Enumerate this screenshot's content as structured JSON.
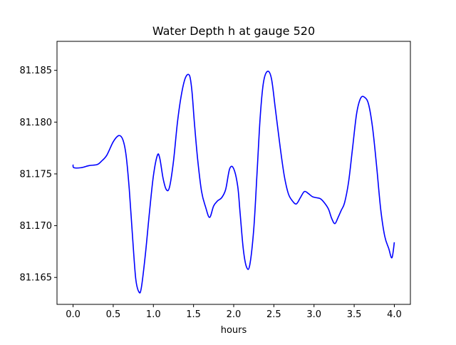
{
  "chart_data": {
    "type": "line",
    "title": "Water Depth h at gauge 520",
    "xlabel": "hours",
    "ylabel": "",
    "xlim": [
      -0.2,
      4.2
    ],
    "ylim": [
      81.1624,
      81.1878
    ],
    "xticks": [
      0.0,
      0.5,
      1.0,
      1.5,
      2.0,
      2.5,
      3.0,
      3.5,
      4.0
    ],
    "xtick_labels": [
      "0.0",
      "0.5",
      "1.0",
      "1.5",
      "2.0",
      "2.5",
      "3.0",
      "3.5",
      "4.0"
    ],
    "yticks": [
      81.165,
      81.17,
      81.175,
      81.18,
      81.185
    ],
    "ytick_labels": [
      "81.165",
      "81.170",
      "81.175",
      "81.180",
      "81.185"
    ],
    "grid": false,
    "series": [
      {
        "color": "#0000ff",
        "x": [
          0.0,
          0.01,
          0.1,
          0.2,
          0.3,
          0.35,
          0.42,
          0.5,
          0.57,
          0.62,
          0.66,
          0.7,
          0.74,
          0.78,
          0.82,
          0.85,
          0.9,
          0.95,
          1.0,
          1.05,
          1.08,
          1.12,
          1.16,
          1.2,
          1.25,
          1.3,
          1.35,
          1.4,
          1.45,
          1.48,
          1.51,
          1.55,
          1.6,
          1.65,
          1.7,
          1.75,
          1.8,
          1.85,
          1.9,
          1.95,
          2.0,
          2.05,
          2.08,
          2.12,
          2.16,
          2.2,
          2.25,
          2.29,
          2.33,
          2.37,
          2.42,
          2.47,
          2.52,
          2.58,
          2.63,
          2.68,
          2.73,
          2.78,
          2.83,
          2.88,
          2.93,
          2.98,
          3.03,
          3.08,
          3.13,
          3.18,
          3.22,
          3.26,
          3.3,
          3.34,
          3.38,
          3.43,
          3.48,
          3.53,
          3.58,
          3.63,
          3.68,
          3.73,
          3.78,
          3.83,
          3.88,
          3.93,
          3.97,
          4.0
        ],
        "y": [
          81.1759,
          81.1756,
          81.1756,
          81.1758,
          81.1759,
          81.1762,
          81.1768,
          81.1781,
          81.1787,
          81.1783,
          81.1768,
          81.1735,
          81.169,
          81.1649,
          81.1636,
          81.164,
          81.1672,
          81.1712,
          81.1748,
          81.1768,
          81.1765,
          81.1746,
          81.1735,
          81.1737,
          81.1762,
          81.18,
          81.1827,
          81.1843,
          81.1845,
          81.183,
          81.18,
          81.1765,
          81.1733,
          81.1718,
          81.1708,
          81.1719,
          81.1724,
          81.1727,
          81.1735,
          81.1755,
          81.1755,
          81.1738,
          81.1712,
          81.1677,
          81.166,
          81.1662,
          81.1697,
          81.175,
          81.1805,
          81.1838,
          81.1849,
          81.1842,
          81.1812,
          81.1775,
          81.1748,
          81.1731,
          81.1724,
          81.1721,
          81.1727,
          81.1733,
          81.1731,
          81.1728,
          81.1727,
          81.1726,
          81.1722,
          81.1716,
          81.1707,
          81.1702,
          81.1708,
          81.1715,
          81.1722,
          81.1742,
          81.1775,
          81.1808,
          81.1823,
          81.1824,
          81.1817,
          81.1794,
          81.1757,
          81.1716,
          81.169,
          81.1678,
          81.1669,
          81.1684
        ]
      }
    ]
  }
}
